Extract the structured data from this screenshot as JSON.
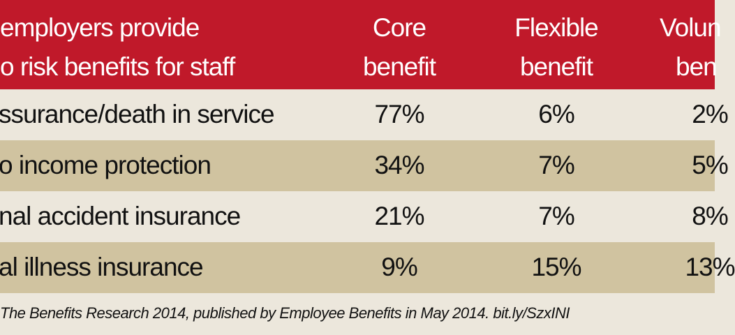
{
  "chart_data": {
    "type": "table",
    "title_lines": [
      "employers provide",
      "o risk benefits for staff"
    ],
    "columns": [
      {
        "line1": "Core",
        "line2": "benefit"
      },
      {
        "line1": "Flexible",
        "line2": "benefit"
      },
      {
        "line1": "Volun",
        "line2": "ben"
      }
    ],
    "rows": [
      {
        "label": "ssurance/death in service",
        "values": [
          "77%",
          "6%",
          "2%"
        ]
      },
      {
        "label": "o income protection",
        "values": [
          "34%",
          "7%",
          "5%"
        ]
      },
      {
        "label": "nal accident insurance",
        "values": [
          "21%",
          "7%",
          "8%"
        ]
      },
      {
        "label": "al illness insurance",
        "values": [
          "9%",
          "15%",
          "13%"
        ]
      }
    ],
    "source": "The Benefits Research 2014, published by Employee Benefits in May 2014. bit.ly/SzxINI"
  },
  "colors": {
    "header": "#c0192a",
    "row_light": "#ece7dc",
    "row_tan": "#d0c3a0"
  }
}
